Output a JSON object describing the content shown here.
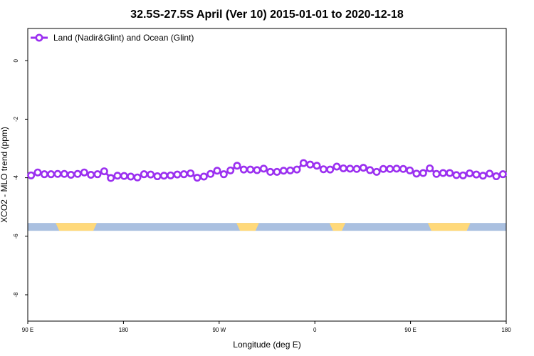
{
  "chart_data": {
    "type": "line",
    "title": "32.5S-27.5S April (Ver 10)   2015-01-01 to 2020-12-18",
    "xlabel": "Longitude (deg E)",
    "ylabel": "XCO2 - MLO trend (ppm)",
    "xlim": [
      90,
      450
    ],
    "ylim": [
      -8.9,
      1.1
    ],
    "x_ticks": [
      {
        "value": 90,
        "label": "90 E"
      },
      {
        "value": 162,
        "label": "180"
      },
      {
        "value": 234,
        "label": "90 W"
      },
      {
        "value": 306,
        "label": "0"
      },
      {
        "value": 378,
        "label": "90 E"
      },
      {
        "value": 450,
        "label": "180"
      }
    ],
    "y_ticks": [
      {
        "value": 0,
        "label": "0"
      },
      {
        "value": -2,
        "label": "-2"
      },
      {
        "value": -4,
        "label": "-4"
      },
      {
        "value": -6,
        "label": "-6"
      },
      {
        "value": -8,
        "label": "-8"
      }
    ],
    "legend": {
      "position": "top-left"
    },
    "series": [
      {
        "name": "Land (Nadir&Glint) and Ocean (Glint)",
        "color": "#9b30f0",
        "marker": "open-circle",
        "x": [
          92.5,
          97.5,
          102.5,
          107.5,
          112.5,
          117.5,
          122.5,
          127.5,
          132.5,
          137.5,
          142.5,
          147.5,
          152.5,
          157.5,
          162.5,
          167.5,
          172.5,
          177.5,
          182.5,
          187.5,
          192.5,
          197.5,
          202.5,
          207.5,
          212.5,
          217.5,
          222.5,
          227.5,
          232.5,
          237.5,
          242.5,
          247.5,
          252.5,
          257.5,
          262.5,
          267.5,
          272.5,
          277.5,
          282.5,
          287.5,
          292.5,
          297.5,
          302.5,
          307.5,
          312.5,
          317.5,
          322.5,
          327.5,
          332.5,
          337.5,
          342.5,
          347.5,
          352.5,
          357.5,
          362.5,
          367.5,
          372.5,
          377.5,
          382.5,
          387.5,
          392.5,
          397.5,
          402.5,
          407.5,
          412.5,
          417.5,
          422.5,
          427.5,
          432.5,
          437.5,
          442.5,
          447.5
        ],
        "y": [
          -3.92,
          -3.82,
          -3.88,
          -3.88,
          -3.87,
          -3.87,
          -3.9,
          -3.87,
          -3.82,
          -3.9,
          -3.88,
          -3.78,
          -4.01,
          -3.93,
          -3.94,
          -3.96,
          -3.99,
          -3.88,
          -3.89,
          -3.95,
          -3.93,
          -3.92,
          -3.89,
          -3.88,
          -3.85,
          -4.0,
          -3.96,
          -3.87,
          -3.76,
          -3.88,
          -3.75,
          -3.59,
          -3.72,
          -3.72,
          -3.74,
          -3.69,
          -3.8,
          -3.8,
          -3.76,
          -3.75,
          -3.72,
          -3.5,
          -3.55,
          -3.59,
          -3.71,
          -3.72,
          -3.62,
          -3.68,
          -3.69,
          -3.7,
          -3.66,
          -3.74,
          -3.8,
          -3.7,
          -3.7,
          -3.69,
          -3.7,
          -3.75,
          -3.86,
          -3.84,
          -3.68,
          -3.87,
          -3.84,
          -3.84,
          -3.91,
          -3.92,
          -3.85,
          -3.89,
          -3.93,
          -3.86,
          -3.95,
          -3.88
        ]
      }
    ],
    "band": {
      "y": -5.68,
      "land_color": "#ffd97a",
      "ocean_color": "#aac0e0",
      "land_ranges": [
        [
          111,
          142
        ],
        [
          247,
          264
        ],
        [
          317,
          329
        ],
        [
          391,
          423
        ]
      ]
    }
  }
}
